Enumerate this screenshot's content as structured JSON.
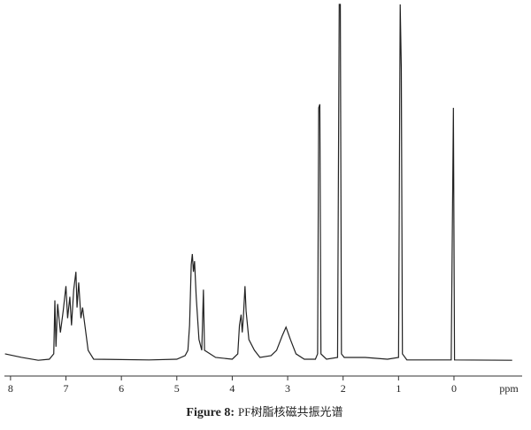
{
  "chart_data": {
    "type": "line",
    "title": "Figure 8:",
    "subtitle": "PF树脂核磁共振光谱",
    "x_label": "ppm",
    "xlim": [
      8.11,
      -1.23
    ],
    "ylim": [
      0,
      100
    ],
    "xticks": [
      8,
      7,
      6,
      5,
      4,
      3,
      2,
      1,
      0
    ],
    "grid": false,
    "series": [
      {
        "name": "spectrum",
        "color": "#222222",
        "x": [
          8.1,
          7.8,
          7.5,
          7.3,
          7.22,
          7.2,
          7.18,
          7.15,
          7.1,
          7.05,
          7.0,
          6.97,
          6.93,
          6.9,
          6.86,
          6.82,
          6.8,
          6.77,
          6.73,
          6.7,
          6.65,
          6.6,
          6.5,
          5.5,
          5.0,
          4.85,
          4.8,
          4.77,
          4.74,
          4.72,
          4.7,
          4.68,
          4.65,
          4.6,
          4.55,
          4.52,
          4.5,
          4.3,
          4.0,
          3.9,
          3.87,
          3.84,
          3.82,
          3.8,
          3.77,
          3.75,
          3.7,
          3.6,
          3.5,
          3.3,
          3.2,
          3.1,
          3.03,
          2.95,
          2.85,
          2.7,
          2.5,
          2.46,
          2.44,
          2.42,
          2.4,
          2.3,
          2.1,
          2.07,
          2.05,
          2.03,
          1.98,
          1.6,
          1.2,
          1.0,
          0.97,
          0.95,
          0.93,
          0.85,
          0.05,
          0.01,
          -0.01,
          -1.05
        ],
        "values": [
          2,
          1,
          0.2,
          0.5,
          2,
          17,
          4,
          16,
          8,
          14,
          21,
          12,
          18,
          10,
          20,
          25,
          15,
          22,
          12,
          15,
          9,
          3,
          0.5,
          0.3,
          0.5,
          1.5,
          3,
          10,
          27,
          30,
          25,
          28,
          18,
          6,
          3,
          20,
          3,
          1,
          0.5,
          2,
          10,
          13,
          8,
          12,
          21,
          14,
          6,
          3,
          1,
          1.5,
          3,
          7,
          9.5,
          6,
          2,
          0.5,
          0.5,
          2,
          71,
          72,
          2,
          0.5,
          1,
          100,
          100,
          2,
          1,
          1,
          0.5,
          1,
          100,
          82,
          2,
          0.3,
          0.3,
          71,
          0.3,
          0.2
        ]
      }
    ]
  }
}
